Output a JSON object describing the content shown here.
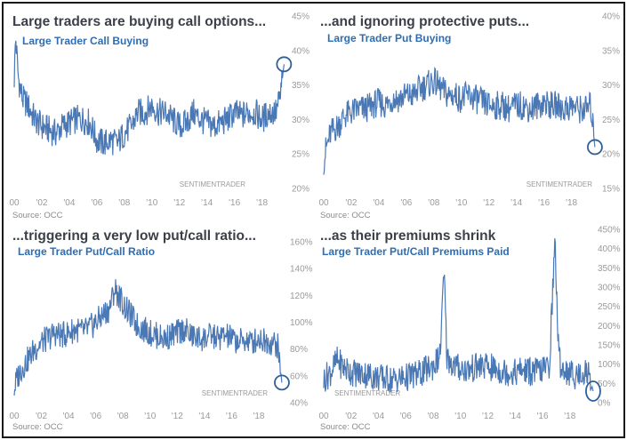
{
  "colors": {
    "line": "#4a78b5",
    "heading": "#3b3f47",
    "subtitle": "#2d6db3",
    "tick": "#9a9a9a",
    "source": "#8a8a8a",
    "circle": "#2e5f98"
  },
  "x_tick_labels": [
    "00",
    "'02",
    "'04",
    "'06",
    "'08",
    "'10",
    "'12",
    "'14",
    "'16",
    "'18"
  ],
  "chart_data": [
    {
      "type": "line",
      "heading": "Large traders are buying call options...",
      "title": "Large Trader Call Buying",
      "watermark": "SENTIMENTRADER",
      "source": "Source: OCC",
      "x_range": [
        2000,
        2019.9
      ],
      "ylim": [
        20,
        45
      ],
      "y_ticks": [
        {
          "v": 20,
          "label": "20%"
        },
        {
          "v": 25,
          "label": "25%"
        },
        {
          "v": 30,
          "label": "30%"
        },
        {
          "v": 35,
          "label": "35%"
        },
        {
          "v": 40,
          "label": "40%"
        },
        {
          "v": 45,
          "label": "45%"
        }
      ],
      "series": [
        {
          "x": [
            2000.0,
            2000.1,
            2000.3,
            2000.6,
            2001.0,
            2001.5,
            2002.0,
            2002.5,
            2003.0,
            2003.5,
            2004.0,
            2004.5,
            2005.0,
            2005.5,
            2006.0,
            2006.5,
            2007.0,
            2007.5,
            2008.0,
            2008.5,
            2009.0,
            2009.5,
            2010.0,
            2010.5,
            2011.0,
            2011.5,
            2012.0,
            2012.5,
            2013.0,
            2013.5,
            2014.0,
            2014.5,
            2015.0,
            2015.5,
            2016.0,
            2016.5,
            2017.0,
            2017.5,
            2018.0,
            2018.5,
            2019.0,
            2019.3,
            2019.6
          ],
          "values": [
            36,
            42,
            36,
            33,
            32,
            30,
            29,
            28.5,
            28,
            29,
            29.5,
            30,
            30,
            29.5,
            27,
            26.5,
            27,
            26.5,
            28,
            29,
            31,
            31,
            32,
            31,
            31,
            30,
            29,
            29.5,
            31,
            30,
            29.5,
            29,
            29.5,
            30,
            31,
            30.5,
            31,
            31,
            30,
            31,
            31,
            33,
            38
          ]
        }
      ],
      "circle": {
        "x": 2019.6,
        "y": 38
      }
    },
    {
      "type": "line",
      "heading": "...and ignoring protective puts...",
      "title": "Large Trader Put Buying",
      "watermark": "SENTIMENTRADER",
      "source": "Source: OCC",
      "x_range": [
        2000,
        2019.9
      ],
      "ylim": [
        15,
        40
      ],
      "y_ticks": [
        {
          "v": 15,
          "label": "15%"
        },
        {
          "v": 20,
          "label": "20%"
        },
        {
          "v": 25,
          "label": "25%"
        },
        {
          "v": 30,
          "label": "30%"
        },
        {
          "v": 35,
          "label": "35%"
        },
        {
          "v": 40,
          "label": "40%"
        }
      ],
      "series": [
        {
          "x": [
            2000.0,
            2000.2,
            2000.5,
            2001.0,
            2001.5,
            2002.0,
            2002.5,
            2003.0,
            2003.5,
            2004.0,
            2004.5,
            2005.0,
            2005.5,
            2006.0,
            2006.5,
            2007.0,
            2007.5,
            2008.0,
            2008.5,
            2009.0,
            2009.5,
            2010.0,
            2010.5,
            2011.0,
            2011.5,
            2012.0,
            2012.5,
            2013.0,
            2013.5,
            2014.0,
            2014.5,
            2015.0,
            2015.5,
            2016.0,
            2016.5,
            2017.0,
            2017.5,
            2018.0,
            2018.5,
            2019.0,
            2019.4,
            2019.7
          ],
          "values": [
            19,
            21,
            23,
            24,
            25.5,
            26,
            26.5,
            26.5,
            27,
            27.5,
            27,
            28,
            28,
            28.5,
            28.5,
            29.5,
            30,
            30.5,
            29.5,
            28.5,
            28.5,
            28,
            28.5,
            28,
            27.5,
            27,
            27,
            27,
            26.5,
            27,
            27,
            26.5,
            27,
            27.5,
            27,
            27,
            26.5,
            27,
            26.5,
            26.5,
            27,
            21
          ]
        }
      ],
      "circle": {
        "x": 2019.7,
        "y": 21
      }
    },
    {
      "type": "line",
      "heading": "...triggering a very low put/call ratio...",
      "title": "Large Trader Put/Call Ratio",
      "watermark": "SENTIMENTRADER",
      "source": "Source: OCC",
      "x_range": [
        2000,
        2019.9
      ],
      "ylim": [
        40,
        160
      ],
      "y_ticks": [
        {
          "v": 40,
          "label": "40%"
        },
        {
          "v": 60,
          "label": "60%"
        },
        {
          "v": 80,
          "label": "80%"
        },
        {
          "v": 100,
          "label": "100%"
        },
        {
          "v": 120,
          "label": "120%"
        },
        {
          "v": 140,
          "label": "140%"
        },
        {
          "v": 160,
          "label": "160%"
        }
      ],
      "series": [
        {
          "x": [
            2000.0,
            2000.2,
            2000.5,
            2001.0,
            2001.5,
            2002.0,
            2002.5,
            2003.0,
            2003.5,
            2004.0,
            2004.5,
            2005.0,
            2005.5,
            2006.0,
            2006.5,
            2007.0,
            2007.4,
            2007.8,
            2008.2,
            2008.6,
            2009.0,
            2009.5,
            2010.0,
            2010.5,
            2011.0,
            2011.5,
            2012.0,
            2012.5,
            2013.0,
            2013.5,
            2014.0,
            2014.5,
            2015.0,
            2015.5,
            2016.0,
            2016.5,
            2017.0,
            2017.5,
            2018.0,
            2018.5,
            2019.0,
            2019.4,
            2019.7
          ],
          "values": [
            50,
            58,
            65,
            72,
            80,
            85,
            88,
            92,
            90,
            92,
            95,
            93,
            95,
            100,
            105,
            110,
            125,
            118,
            110,
            105,
            98,
            95,
            92,
            90,
            88,
            90,
            92,
            95,
            90,
            88,
            88,
            90,
            88,
            90,
            88,
            85,
            87,
            85,
            88,
            86,
            85,
            82,
            55
          ]
        }
      ],
      "circle": {
        "x": 2019.7,
        "y": 55
      }
    },
    {
      "type": "line",
      "heading": "...as their premiums shrink",
      "title": "Large Trader Put/Call Premiums Paid",
      "watermark": "SENTIMENTRADER",
      "source": "Source: OCC",
      "x_range": [
        2000,
        2019.9
      ],
      "ylim": [
        0,
        450
      ],
      "y_ticks": [
        {
          "v": 0,
          "label": "0%"
        },
        {
          "v": 50,
          "label": "50%"
        },
        {
          "v": 100,
          "label": "100%"
        },
        {
          "v": 150,
          "label": "150%"
        },
        {
          "v": 200,
          "label": "200%"
        },
        {
          "v": 250,
          "label": "250%"
        },
        {
          "v": 300,
          "label": "300%"
        },
        {
          "v": 350,
          "label": "350%"
        },
        {
          "v": 400,
          "label": "400%"
        },
        {
          "v": 450,
          "label": "450%"
        }
      ],
      "series": [
        {
          "x": [
            2000.0,
            2000.5,
            2001.0,
            2001.5,
            2002.0,
            2002.5,
            2003.0,
            2003.5,
            2004.0,
            2004.5,
            2005.0,
            2005.5,
            2006.0,
            2006.5,
            2007.0,
            2007.5,
            2008.0,
            2008.5,
            2008.8,
            2009.0,
            2009.5,
            2010.0,
            2010.5,
            2011.0,
            2011.5,
            2012.0,
            2012.5,
            2013.0,
            2013.5,
            2014.0,
            2014.5,
            2015.0,
            2015.5,
            2016.0,
            2016.5,
            2016.9,
            2017.2,
            2017.5,
            2018.0,
            2018.5,
            2019.0,
            2019.4,
            2019.7
          ],
          "values": [
            60,
            80,
            110,
            90,
            80,
            75,
            75,
            70,
            65,
            62,
            60,
            62,
            65,
            70,
            75,
            85,
            95,
            120,
            340,
            120,
            95,
            90,
            85,
            90,
            95,
            92,
            88,
            82,
            80,
            78,
            85,
            82,
            80,
            85,
            95,
            420,
            110,
            90,
            75,
            70,
            80,
            75,
            30
          ]
        }
      ],
      "circle": {
        "x": 2019.7,
        "y": 30
      }
    }
  ]
}
